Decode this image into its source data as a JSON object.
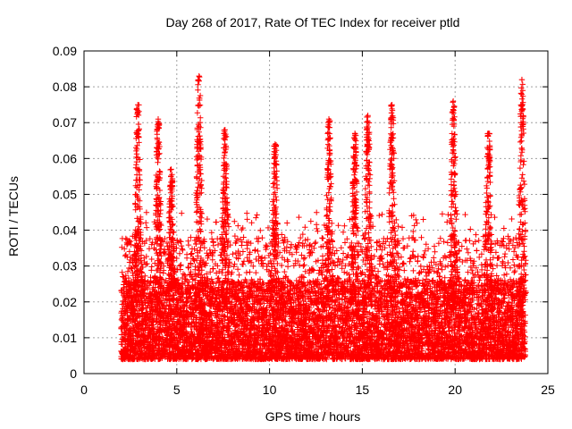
{
  "chart_data": {
    "type": "scatter",
    "title": "Day 268 of 2017, Rate Of TEC Index for receiver ptld",
    "xlabel": "GPS time / hours",
    "ylabel": "ROTI / TECUs",
    "xlim": [
      0,
      25
    ],
    "ylim": [
      0,
      0.09
    ],
    "x_ticks": [
      0,
      5,
      10,
      15,
      20,
      25
    ],
    "y_ticks": [
      0,
      0.01,
      0.02,
      0.03,
      0.04,
      0.05,
      0.06,
      0.07,
      0.08,
      0.09
    ],
    "x_tick_labels": [
      "0",
      "5",
      "10",
      "15",
      "20",
      "25"
    ],
    "y_tick_labels": [
      "0",
      "0.01",
      "0.02",
      "0.03",
      "0.04",
      "0.05",
      "0.06",
      "0.07",
      "0.08",
      "0.09"
    ],
    "grid": true,
    "marker": "+",
    "marker_color": "#ff0000",
    "data_x_range": [
      2.0,
      23.8
    ],
    "series": [
      {
        "name": "ROTI",
        "note": "dense cloud of thousands of points; peaks listed below, bulk density 0.005-0.03",
        "peaks": [
          {
            "x": 2.9,
            "y": 0.075
          },
          {
            "x": 4.0,
            "y": 0.071
          },
          {
            "x": 4.7,
            "y": 0.057
          },
          {
            "x": 6.2,
            "y": 0.083
          },
          {
            "x": 7.6,
            "y": 0.068
          },
          {
            "x": 10.3,
            "y": 0.064
          },
          {
            "x": 13.2,
            "y": 0.071
          },
          {
            "x": 14.6,
            "y": 0.067
          },
          {
            "x": 15.3,
            "y": 0.072
          },
          {
            "x": 16.6,
            "y": 0.075
          },
          {
            "x": 19.9,
            "y": 0.076
          },
          {
            "x": 21.8,
            "y": 0.067
          },
          {
            "x": 23.6,
            "y": 0.082
          }
        ]
      }
    ]
  }
}
